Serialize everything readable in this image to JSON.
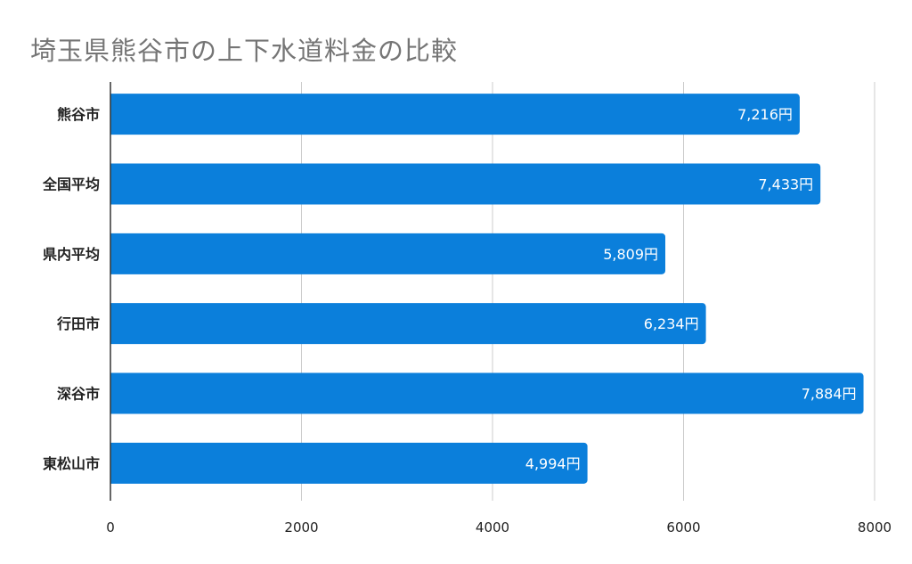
{
  "chart_data": {
    "type": "bar",
    "orientation": "horizontal",
    "title": "埼玉県熊谷市の上下水道料金の比較",
    "categories": [
      "熊谷市",
      "全国平均",
      "県内平均",
      "行田市",
      "深谷市",
      "東松山市"
    ],
    "values": [
      7216,
      7433,
      5809,
      6234,
      7884,
      4994
    ],
    "data_labels": [
      "7,216円",
      "7,433円",
      "5,809円",
      "6,234円",
      "7,884円",
      "4,994円"
    ],
    "xlim": [
      0,
      8000
    ],
    "xticks": [
      "0",
      "2000",
      "4000",
      "6000",
      "8000"
    ],
    "grid": true,
    "legend": "none",
    "colors": {
      "bar": "#0b7fdb",
      "grid": "#cccccc",
      "title": "#757575"
    }
  }
}
